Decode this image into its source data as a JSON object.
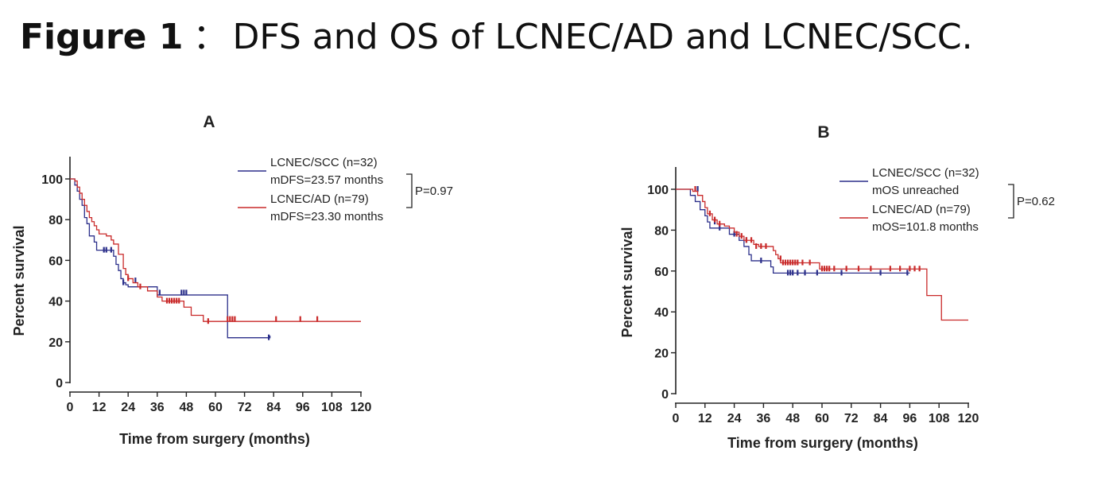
{
  "figure_title": {
    "lead": "Figure 1",
    "sep": "：",
    "rest": "DFS and OS of LCNEC/AD and LCNEC/SCC."
  },
  "colors": {
    "scc": "#2b2f8a",
    "ad": "#c92a2a",
    "axis": "#222222"
  },
  "chart_data": [
    {
      "type": "line",
      "subtype": "kaplan-meier",
      "panel_label": "A",
      "xlabel": "Time from surgery (months)",
      "ylabel": "Percent survival",
      "xlim": [
        0,
        120
      ],
      "ylim": [
        0,
        100
      ],
      "xticks": [
        0,
        12,
        24,
        36,
        48,
        60,
        72,
        84,
        96,
        108,
        120
      ],
      "yticks": [
        0,
        20,
        40,
        60,
        80,
        100
      ],
      "legend_position": "top-right",
      "legend": [
        {
          "series": "LCNEC/SCC",
          "label": "LCNEC/SCC (n=32)",
          "sublabel": "mDFS=23.57 months",
          "color": "#2b2f8a"
        },
        {
          "series": "LCNEC/AD",
          "label": "LCNEC/AD (n=79)",
          "sublabel": "mDFS=23.30 months",
          "color": "#c92a2a"
        }
      ],
      "pvalue": "P=0.97",
      "series": [
        {
          "name": "LCNEC/SCC",
          "color": "#2b2f8a",
          "steps": [
            [
              0,
              100
            ],
            [
              2,
              97
            ],
            [
              3,
              94
            ],
            [
              4,
              90
            ],
            [
              5,
              87
            ],
            [
              6,
              81
            ],
            [
              7,
              78
            ],
            [
              8,
              72
            ],
            [
              10,
              69
            ],
            [
              11,
              65
            ],
            [
              17,
              65
            ],
            [
              18,
              62
            ],
            [
              19,
              58
            ],
            [
              20,
              55
            ],
            [
              21,
              51
            ],
            [
              22,
              49
            ],
            [
              23,
              48
            ],
            [
              24,
              47
            ],
            [
              35,
              47
            ],
            [
              36,
              43
            ],
            [
              64,
              43
            ],
            [
              65,
              22
            ],
            [
              82,
              22
            ],
            [
              82.5,
              23
            ]
          ],
          "censored": [
            [
              14,
              65
            ],
            [
              15,
              65
            ],
            [
              17,
              65
            ],
            [
              22,
              49
            ],
            [
              27,
              50
            ],
            [
              37,
              44
            ],
            [
              46,
              44
            ],
            [
              47,
              44
            ],
            [
              48,
              44
            ],
            [
              82,
              22
            ]
          ]
        },
        {
          "name": "LCNEC/AD",
          "color": "#c92a2a",
          "steps": [
            [
              0,
              100
            ],
            [
              2,
              99
            ],
            [
              3,
              96
            ],
            [
              4,
              93
            ],
            [
              5,
              90
            ],
            [
              6,
              87
            ],
            [
              7,
              84
            ],
            [
              8,
              81
            ],
            [
              9,
              79
            ],
            [
              10,
              77
            ],
            [
              11,
              75
            ],
            [
              12,
              73
            ],
            [
              15,
              72
            ],
            [
              17,
              70
            ],
            [
              18,
              68
            ],
            [
              20,
              63
            ],
            [
              22,
              56
            ],
            [
              23,
              53
            ],
            [
              24,
              51
            ],
            [
              26,
              49
            ],
            [
              28,
              47
            ],
            [
              32,
              45
            ],
            [
              36,
              42
            ],
            [
              38,
              40
            ],
            [
              46,
              40
            ],
            [
              47,
              37
            ],
            [
              50,
              33
            ],
            [
              52,
              33
            ],
            [
              55,
              30
            ],
            [
              120,
              30
            ]
          ],
          "censored": [
            [
              24,
              51
            ],
            [
              29,
              47
            ],
            [
              40,
              40
            ],
            [
              41,
              40
            ],
            [
              42,
              40
            ],
            [
              43,
              40
            ],
            [
              44,
              40
            ],
            [
              45,
              40
            ],
            [
              57,
              30
            ],
            [
              65,
              31
            ],
            [
              66,
              31
            ],
            [
              67,
              31
            ],
            [
              68,
              31
            ],
            [
              85,
              31
            ],
            [
              95,
              31
            ],
            [
              102,
              31
            ]
          ]
        }
      ]
    },
    {
      "type": "line",
      "subtype": "kaplan-meier",
      "panel_label": "B",
      "xlabel": "Time from surgery (months)",
      "ylabel": "Percent survival",
      "xlim": [
        0,
        120
      ],
      "ylim": [
        0,
        100
      ],
      "xticks": [
        0,
        12,
        24,
        36,
        48,
        60,
        72,
        84,
        96,
        108,
        120
      ],
      "yticks": [
        0,
        20,
        40,
        60,
        80,
        100
      ],
      "legend_position": "top-right",
      "legend": [
        {
          "series": "LCNEC/SCC",
          "label": "LCNEC/SCC (n=32)",
          "sublabel": "mOS unreached",
          "color": "#2b2f8a"
        },
        {
          "series": "LCNEC/AD",
          "label": "LCNEC/AD (n=79)",
          "sublabel": "mOS=101.8 months",
          "color": "#c92a2a"
        }
      ],
      "pvalue": "P=0.62",
      "series": [
        {
          "name": "LCNEC/SCC",
          "color": "#2b2f8a",
          "steps": [
            [
              0,
              100
            ],
            [
              6,
              97
            ],
            [
              8,
              94
            ],
            [
              10,
              90
            ],
            [
              12,
              87
            ],
            [
              13,
              84
            ],
            [
              14,
              81
            ],
            [
              20,
              81
            ],
            [
              22,
              78
            ],
            [
              26,
              75
            ],
            [
              28,
              72
            ],
            [
              30,
              68
            ],
            [
              31,
              65
            ],
            [
              37,
              65
            ],
            [
              39,
              62
            ],
            [
              40,
              59
            ],
            [
              96,
              59
            ]
          ],
          "censored": [
            [
              9,
              100
            ],
            [
              16,
              84
            ],
            [
              18,
              81
            ],
            [
              24,
              78
            ],
            [
              29,
              75
            ],
            [
              35,
              65
            ],
            [
              46,
              59
            ],
            [
              47,
              59
            ],
            [
              48,
              59
            ],
            [
              50,
              59
            ],
            [
              53,
              59
            ],
            [
              58,
              59
            ],
            [
              68,
              59
            ],
            [
              84,
              59
            ],
            [
              95,
              59
            ]
          ]
        },
        {
          "name": "LCNEC/AD",
          "color": "#c92a2a",
          "steps": [
            [
              0,
              100
            ],
            [
              7,
              99
            ],
            [
              9,
              97
            ],
            [
              11,
              94
            ],
            [
              12,
              91
            ],
            [
              13,
              88
            ],
            [
              15,
              85
            ],
            [
              17,
              83
            ],
            [
              20,
              82
            ],
            [
              22,
              81
            ],
            [
              24,
              79
            ],
            [
              26,
              77
            ],
            [
              28,
              75
            ],
            [
              32,
              73
            ],
            [
              34,
              72
            ],
            [
              40,
              70
            ],
            [
              41,
              68
            ],
            [
              42,
              66
            ],
            [
              43,
              64
            ],
            [
              58,
              64
            ],
            [
              59,
              61
            ],
            [
              102,
              61
            ],
            [
              103,
              48
            ],
            [
              108,
              48
            ],
            [
              109,
              36
            ],
            [
              120,
              36
            ]
          ],
          "censored": [
            [
              8,
              100
            ],
            [
              14,
              88
            ],
            [
              16,
              85
            ],
            [
              18,
              83
            ],
            [
              25,
              78
            ],
            [
              27,
              77
            ],
            [
              29,
              75
            ],
            [
              31,
              75
            ],
            [
              33,
              72
            ],
            [
              35,
              72
            ],
            [
              37,
              72
            ],
            [
              43,
              66
            ],
            [
              44,
              64
            ],
            [
              45,
              64
            ],
            [
              46,
              64
            ],
            [
              47,
              64
            ],
            [
              48,
              64
            ],
            [
              49,
              64
            ],
            [
              50,
              64
            ],
            [
              52,
              64
            ],
            [
              55,
              64
            ],
            [
              60,
              61
            ],
            [
              61,
              61
            ],
            [
              62,
              61
            ],
            [
              63,
              61
            ],
            [
              65,
              61
            ],
            [
              70,
              61
            ],
            [
              75,
              61
            ],
            [
              80,
              61
            ],
            [
              88,
              61
            ],
            [
              92,
              61
            ],
            [
              96,
              61
            ],
            [
              98,
              61
            ],
            [
              100,
              61
            ]
          ]
        }
      ]
    }
  ]
}
